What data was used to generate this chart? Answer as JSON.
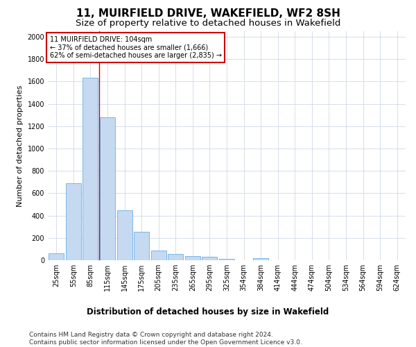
{
  "title": "11, MUIRFIELD DRIVE, WAKEFIELD, WF2 8SH",
  "subtitle": "Size of property relative to detached houses in Wakefield",
  "xlabel": "Distribution of detached houses by size in Wakefield",
  "ylabel": "Number of detached properties",
  "bar_values": [
    65,
    690,
    1635,
    1280,
    445,
    255,
    90,
    55,
    35,
    28,
    15,
    0,
    18,
    0,
    0,
    0,
    0,
    0,
    0,
    0,
    0
  ],
  "categories": [
    "25sqm",
    "55sqm",
    "85sqm",
    "115sqm",
    "145sqm",
    "175sqm",
    "205sqm",
    "235sqm",
    "265sqm",
    "295sqm",
    "325sqm",
    "354sqm",
    "384sqm",
    "414sqm",
    "444sqm",
    "474sqm",
    "504sqm",
    "534sqm",
    "564sqm",
    "594sqm",
    "624sqm"
  ],
  "bar_color": "#c5d9f0",
  "bar_edge_color": "#6aaee8",
  "vline_x": 2.5,
  "vline_color": "#cc0000",
  "annotation_text": "11 MUIRFIELD DRIVE: 104sqm\n← 37% of detached houses are smaller (1,666)\n62% of semi-detached houses are larger (2,835) →",
  "annotation_box_color": "#cc0000",
  "ylim": [
    0,
    2050
  ],
  "yticks": [
    0,
    200,
    400,
    600,
    800,
    1000,
    1200,
    1400,
    1600,
    1800,
    2000
  ],
  "footer": "Contains HM Land Registry data © Crown copyright and database right 2024.\nContains public sector information licensed under the Open Government Licence v3.0.",
  "bg_color": "#ffffff",
  "grid_color": "#d0d8e8",
  "title_fontsize": 11,
  "subtitle_fontsize": 9.5,
  "ylabel_fontsize": 8,
  "xlabel_fontsize": 8.5,
  "tick_fontsize": 7,
  "annotation_fontsize": 7,
  "footer_fontsize": 6.5
}
